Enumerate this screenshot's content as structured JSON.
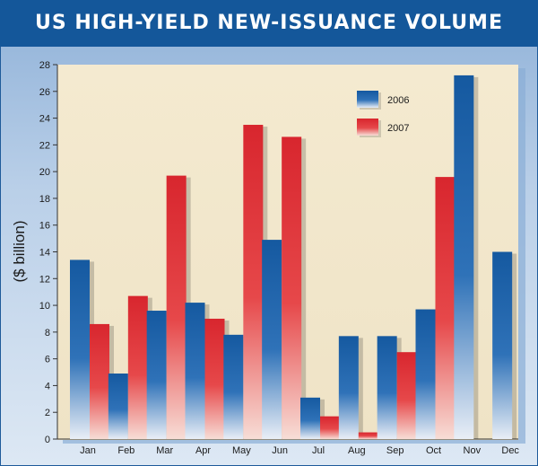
{
  "chart_data": {
    "type": "bar",
    "title": "US HIGH-YIELD NEW-ISSUANCE VOLUME",
    "ylabel": "($ billion)",
    "xlabel": "",
    "categories": [
      "Jan",
      "Feb",
      "Mar",
      "Apr",
      "May",
      "Jun",
      "Jul",
      "Aug",
      "Sep",
      "Oct",
      "Nov",
      "Dec"
    ],
    "series": [
      {
        "name": "2006",
        "color": "#1559a0",
        "values": [
          13.4,
          4.9,
          9.6,
          10.2,
          7.8,
          14.9,
          3.1,
          7.7,
          7.7,
          9.7,
          27.2,
          14.0
        ]
      },
      {
        "name": "2007",
        "color": "#d8262e",
        "values": [
          8.6,
          10.7,
          19.7,
          9.0,
          23.5,
          22.6,
          1.7,
          0.5,
          6.5,
          19.6,
          null,
          null
        ]
      }
    ],
    "ylim": [
      0,
      28
    ],
    "yticks": [
      0,
      2,
      4,
      6,
      8,
      10,
      12,
      14,
      16,
      18,
      20,
      22,
      24,
      26,
      28
    ],
    "legend_position": "top-right",
    "grid": false
  }
}
